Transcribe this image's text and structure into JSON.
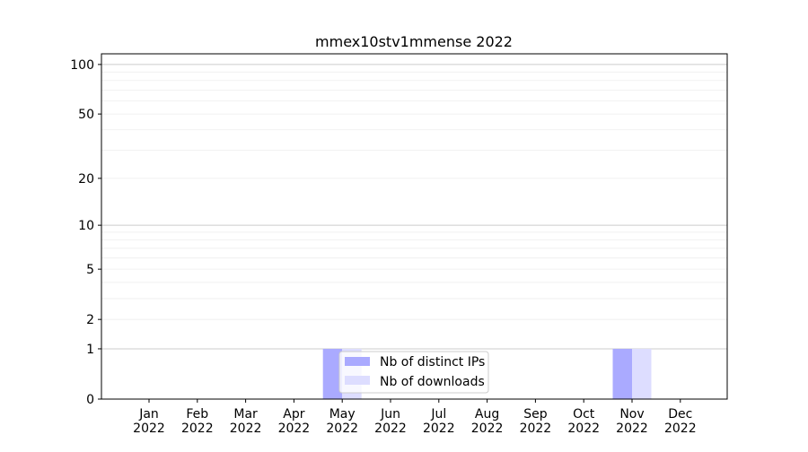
{
  "chart_data": {
    "type": "bar",
    "title": "mmex10stv1mmense 2022",
    "xlabel": "",
    "ylabel": "",
    "categories": [
      "Jan\n2022",
      "Feb\n2022",
      "Mar\n2022",
      "Apr\n2022",
      "May\n2022",
      "Jun\n2022",
      "Jul\n2022",
      "Aug\n2022",
      "Sep\n2022",
      "Oct\n2022",
      "Nov\n2022",
      "Dec\n2022"
    ],
    "series": [
      {
        "name": "Nb of distinct IPs",
        "color": "#aaaaff",
        "values": [
          0,
          0,
          0,
          0,
          1,
          0,
          0,
          0,
          0,
          0,
          1,
          0
        ]
      },
      {
        "name": "Nb of downloads",
        "color": "#ddddff",
        "values": [
          0,
          0,
          0,
          0,
          1,
          0,
          0,
          0,
          0,
          0,
          1,
          0
        ]
      }
    ],
    "yscale": "log(y+1)",
    "ylim": [
      0,
      116
    ],
    "yticks": [
      0,
      1,
      2,
      5,
      10,
      20,
      50,
      100
    ],
    "grid": true,
    "legend": "bottom-center"
  }
}
